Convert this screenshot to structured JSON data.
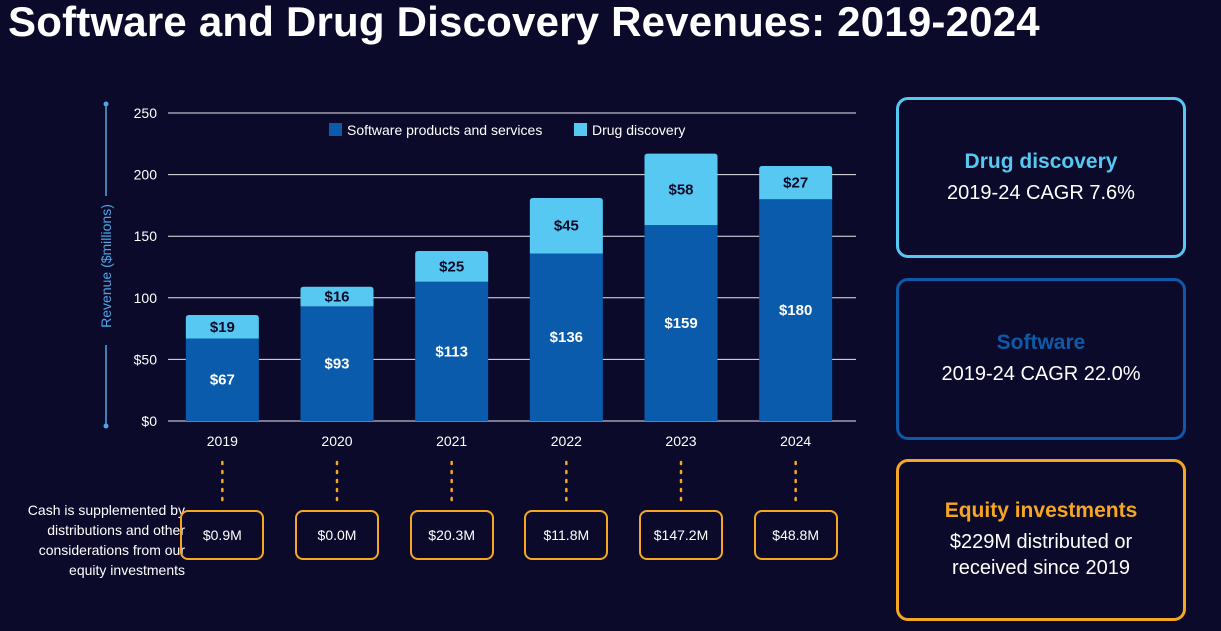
{
  "title": "Software and Drug Discovery Revenues: 2019-2024",
  "colors": {
    "software": "#0a5bab",
    "drug": "#56c8f2",
    "equity": "#f5a623",
    "background": "#0c0a2a"
  },
  "chart_data": {
    "type": "bar",
    "stacked": true,
    "categories": [
      "2019",
      "2020",
      "2021",
      "2022",
      "2023",
      "2024"
    ],
    "series": [
      {
        "name": "Software products and services",
        "values": [
          67,
          93,
          113,
          136,
          159,
          180
        ],
        "labels": [
          "$67",
          "$93",
          "$113",
          "$136",
          "$159",
          "$180"
        ]
      },
      {
        "name": "Drug discovery",
        "values": [
          19,
          16,
          25,
          45,
          58,
          27
        ],
        "labels": [
          "$19",
          "$16",
          "$25",
          "$45",
          "$58",
          "$27"
        ]
      }
    ],
    "ylabel": "Revenue ($millions)",
    "ylim": [
      0,
      250
    ],
    "yticks": [
      0,
      50,
      100,
      150,
      200,
      250
    ],
    "ytick_labels": [
      "$0",
      "$50",
      "100",
      "150",
      "200",
      "250"
    ],
    "grid": true,
    "legend": "top"
  },
  "cash_note": "Cash is supplemented by distributions and other considerations from our equity investments",
  "cash_values": [
    "$0.9M",
    "$0.0M",
    "$20.3M",
    "$11.8M",
    "$147.2M",
    "$48.8M"
  ],
  "kpis": {
    "drug": {
      "title": "Drug discovery",
      "line1": "2019-24 CAGR 7.6%"
    },
    "software": {
      "title": "Software",
      "line1": "2019-24 CAGR 22.0%"
    },
    "equity": {
      "title": "Equity investments",
      "line1": "$229M distributed or",
      "line2": "received since 2019"
    }
  }
}
